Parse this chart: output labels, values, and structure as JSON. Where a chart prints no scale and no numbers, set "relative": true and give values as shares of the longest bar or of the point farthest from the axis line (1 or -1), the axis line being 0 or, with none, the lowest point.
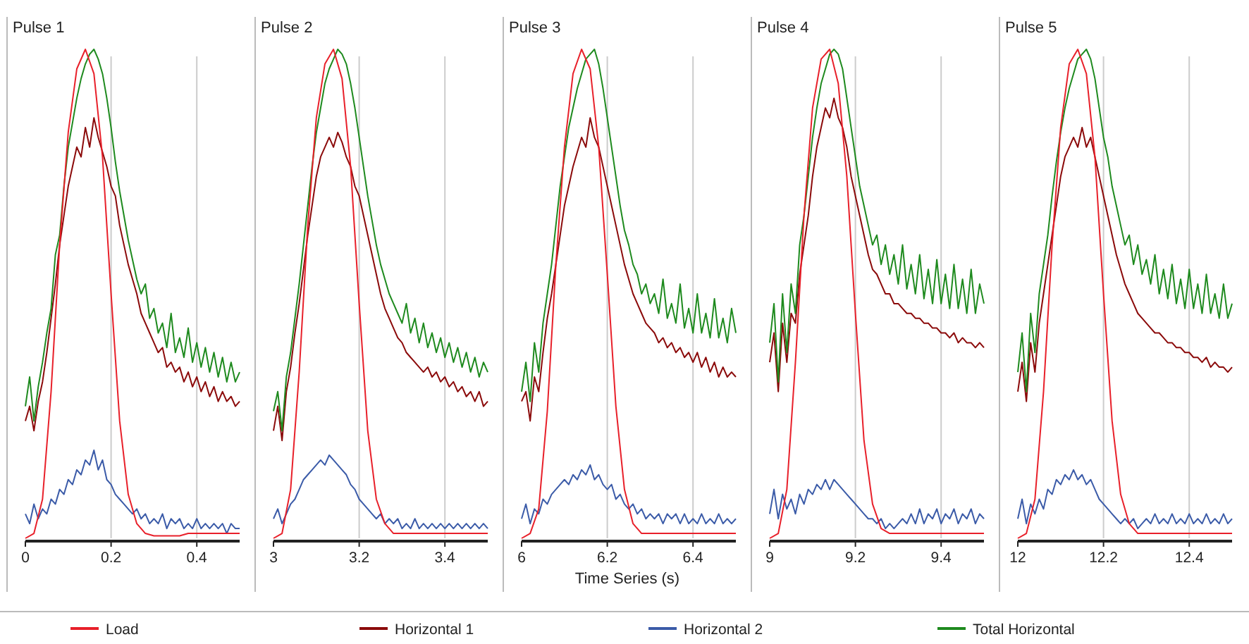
{
  "chart_data": [
    {
      "type": "line",
      "title": "Pulse 1",
      "relative": true,
      "grid": "x",
      "legend": "bottom",
      "xlim": [
        0,
        0.5
      ],
      "xticks": [
        0,
        0.2,
        0.4
      ],
      "x": [
        0,
        0.01,
        0.02,
        0.03,
        0.04,
        0.05,
        0.06,
        0.07,
        0.08,
        0.09,
        0.1,
        0.11,
        0.12,
        0.13,
        0.14,
        0.15,
        0.16,
        0.17,
        0.18,
        0.19,
        0.2,
        0.21,
        0.22,
        0.23,
        0.24,
        0.25,
        0.26,
        0.27,
        0.28,
        0.29,
        0.3,
        0.31,
        0.32,
        0.33,
        0.34,
        0.35,
        0.36,
        0.37,
        0.38,
        0.39,
        0.4,
        0.41,
        0.42,
        0.43,
        0.44,
        0.45,
        0.46,
        0.47,
        0.48,
        0.49,
        0.5
      ],
      "series": [
        {
          "name": "Load",
          "color": "#e8202a",
          "x": [
            0,
            0.02,
            0.04,
            0.06,
            0.08,
            0.1,
            0.12,
            0.14,
            0.16,
            0.18,
            0.2,
            0.22,
            0.24,
            0.26,
            0.28,
            0.3,
            0.32,
            0.34,
            0.36,
            0.38,
            0.4,
            0.42,
            0.44,
            0.46,
            0.48,
            0.5
          ],
          "values": [
            0,
            0.01,
            0.08,
            0.3,
            0.6,
            0.83,
            0.96,
            1.0,
            0.95,
            0.78,
            0.5,
            0.24,
            0.09,
            0.03,
            0.01,
            0.005,
            0.005,
            0.005,
            0.005,
            0.01,
            0.01,
            0.01,
            0.01,
            0.01,
            0.01,
            0.01
          ]
        },
        {
          "name": "Horizontal 1",
          "color": "#8b0a0a",
          "values": [
            0.24,
            0.27,
            0.22,
            0.28,
            0.32,
            0.38,
            0.45,
            0.52,
            0.6,
            0.66,
            0.72,
            0.76,
            0.8,
            0.78,
            0.84,
            0.8,
            0.86,
            0.82,
            0.79,
            0.76,
            0.72,
            0.7,
            0.64,
            0.6,
            0.56,
            0.53,
            0.5,
            0.46,
            0.44,
            0.42,
            0.4,
            0.38,
            0.39,
            0.35,
            0.36,
            0.34,
            0.35,
            0.32,
            0.34,
            0.31,
            0.33,
            0.3,
            0.32,
            0.29,
            0.31,
            0.28,
            0.3,
            0.28,
            0.29,
            0.27,
            0.28
          ]
        },
        {
          "name": "Horizontal 2",
          "color": "#3b5ba8",
          "values": [
            0.05,
            0.03,
            0.07,
            0.04,
            0.06,
            0.05,
            0.08,
            0.07,
            0.1,
            0.09,
            0.12,
            0.11,
            0.14,
            0.13,
            0.16,
            0.15,
            0.18,
            0.14,
            0.16,
            0.12,
            0.11,
            0.09,
            0.08,
            0.07,
            0.06,
            0.05,
            0.06,
            0.04,
            0.05,
            0.03,
            0.04,
            0.03,
            0.05,
            0.02,
            0.04,
            0.03,
            0.04,
            0.02,
            0.03,
            0.02,
            0.04,
            0.02,
            0.03,
            0.02,
            0.03,
            0.02,
            0.03,
            0.01,
            0.03,
            0.02,
            0.02
          ]
        },
        {
          "name": "Total Horizontal",
          "color": "#1e8a1e",
          "values": [
            0.27,
            0.33,
            0.24,
            0.31,
            0.36,
            0.42,
            0.47,
            0.58,
            0.62,
            0.72,
            0.8,
            0.85,
            0.9,
            0.94,
            0.97,
            0.99,
            1.0,
            0.98,
            0.95,
            0.9,
            0.84,
            0.77,
            0.71,
            0.66,
            0.61,
            0.57,
            0.53,
            0.5,
            0.52,
            0.45,
            0.47,
            0.42,
            0.44,
            0.39,
            0.46,
            0.38,
            0.41,
            0.37,
            0.43,
            0.36,
            0.4,
            0.35,
            0.39,
            0.34,
            0.38,
            0.33,
            0.37,
            0.32,
            0.36,
            0.32,
            0.34
          ]
        }
      ]
    },
    {
      "type": "line",
      "title": "Pulse 2",
      "relative": true,
      "grid": "x",
      "xlim": [
        3,
        3.5
      ],
      "xticks": [
        3,
        3.2,
        3.4
      ],
      "x": [
        3,
        3.01,
        3.02,
        3.03,
        3.04,
        3.05,
        3.06,
        3.07,
        3.08,
        3.09,
        3.1,
        3.11,
        3.12,
        3.13,
        3.14,
        3.15,
        3.16,
        3.17,
        3.18,
        3.19,
        3.2,
        3.21,
        3.22,
        3.23,
        3.24,
        3.25,
        3.26,
        3.27,
        3.28,
        3.29,
        3.3,
        3.31,
        3.32,
        3.33,
        3.34,
        3.35,
        3.36,
        3.37,
        3.38,
        3.39,
        3.4,
        3.41,
        3.42,
        3.43,
        3.44,
        3.45,
        3.46,
        3.47,
        3.48,
        3.49,
        3.5
      ],
      "series": [
        {
          "color": "#e8202a",
          "x": [
            3,
            3.02,
            3.04,
            3.06,
            3.08,
            3.1,
            3.12,
            3.14,
            3.16,
            3.18,
            3.2,
            3.22,
            3.24,
            3.26,
            3.28,
            3.3,
            3.32,
            3.34,
            3.36,
            3.38,
            3.4,
            3.42,
            3.44,
            3.46,
            3.48,
            3.5
          ],
          "values": [
            0,
            0.01,
            0.1,
            0.34,
            0.64,
            0.86,
            0.97,
            1.0,
            0.94,
            0.76,
            0.48,
            0.22,
            0.08,
            0.03,
            0.01,
            0.01,
            0.01,
            0.01,
            0.01,
            0.01,
            0.01,
            0.01,
            0.01,
            0.01,
            0.01,
            0.01
          ]
        },
        {
          "color": "#8b0a0a",
          "values": [
            0.22,
            0.27,
            0.2,
            0.3,
            0.35,
            0.42,
            0.48,
            0.55,
            0.62,
            0.68,
            0.74,
            0.78,
            0.8,
            0.82,
            0.8,
            0.83,
            0.81,
            0.78,
            0.76,
            0.72,
            0.7,
            0.66,
            0.62,
            0.58,
            0.54,
            0.5,
            0.47,
            0.45,
            0.43,
            0.41,
            0.4,
            0.38,
            0.37,
            0.36,
            0.35,
            0.34,
            0.35,
            0.33,
            0.34,
            0.32,
            0.33,
            0.31,
            0.32,
            0.3,
            0.31,
            0.29,
            0.3,
            0.28,
            0.3,
            0.27,
            0.28
          ]
        },
        {
          "color": "#3b5ba8",
          "values": [
            0.04,
            0.06,
            0.03,
            0.05,
            0.07,
            0.08,
            0.1,
            0.12,
            0.13,
            0.14,
            0.15,
            0.16,
            0.15,
            0.17,
            0.16,
            0.15,
            0.14,
            0.13,
            0.11,
            0.1,
            0.08,
            0.07,
            0.06,
            0.05,
            0.04,
            0.05,
            0.03,
            0.04,
            0.03,
            0.04,
            0.02,
            0.03,
            0.02,
            0.04,
            0.02,
            0.03,
            0.02,
            0.03,
            0.02,
            0.03,
            0.02,
            0.03,
            0.02,
            0.03,
            0.02,
            0.03,
            0.02,
            0.03,
            0.02,
            0.03,
            0.02
          ]
        },
        {
          "color": "#1e8a1e",
          "values": [
            0.26,
            0.3,
            0.22,
            0.33,
            0.38,
            0.45,
            0.52,
            0.6,
            0.68,
            0.76,
            0.83,
            0.88,
            0.93,
            0.96,
            0.98,
            1.0,
            0.99,
            0.97,
            0.93,
            0.88,
            0.82,
            0.76,
            0.7,
            0.65,
            0.6,
            0.56,
            0.53,
            0.5,
            0.48,
            0.46,
            0.44,
            0.48,
            0.42,
            0.45,
            0.4,
            0.44,
            0.39,
            0.42,
            0.38,
            0.41,
            0.37,
            0.4,
            0.36,
            0.39,
            0.35,
            0.38,
            0.34,
            0.37,
            0.33,
            0.36,
            0.34
          ]
        }
      ]
    },
    {
      "type": "line",
      "title": "Pulse 3",
      "xlabel": "Time Series (s)",
      "relative": true,
      "grid": "x",
      "xlim": [
        6,
        6.5
      ],
      "xticks": [
        6,
        6.2,
        6.4
      ],
      "x": [
        6,
        6.01,
        6.02,
        6.03,
        6.04,
        6.05,
        6.06,
        6.07,
        6.08,
        6.09,
        6.1,
        6.11,
        6.12,
        6.13,
        6.14,
        6.15,
        6.16,
        6.17,
        6.18,
        6.19,
        6.2,
        6.21,
        6.22,
        6.23,
        6.24,
        6.25,
        6.26,
        6.27,
        6.28,
        6.29,
        6.3,
        6.31,
        6.32,
        6.33,
        6.34,
        6.35,
        6.36,
        6.37,
        6.38,
        6.39,
        6.4,
        6.41,
        6.42,
        6.43,
        6.44,
        6.45,
        6.46,
        6.47,
        6.48,
        6.49,
        6.5
      ],
      "series": [
        {
          "color": "#e8202a",
          "x": [
            6,
            6.02,
            6.04,
            6.06,
            6.08,
            6.1,
            6.12,
            6.14,
            6.16,
            6.18,
            6.2,
            6.22,
            6.24,
            6.26,
            6.28,
            6.3,
            6.32,
            6.34,
            6.36,
            6.38,
            6.4,
            6.42,
            6.44,
            6.46,
            6.48,
            6.5
          ],
          "values": [
            0,
            0.01,
            0.06,
            0.26,
            0.56,
            0.8,
            0.95,
            1.0,
            0.96,
            0.8,
            0.54,
            0.27,
            0.1,
            0.03,
            0.01,
            0.01,
            0.01,
            0.01,
            0.01,
            0.01,
            0.01,
            0.01,
            0.01,
            0.01,
            0.01,
            0.01
          ]
        },
        {
          "color": "#8b0a0a",
          "values": [
            0.28,
            0.3,
            0.24,
            0.33,
            0.3,
            0.38,
            0.45,
            0.5,
            0.56,
            0.62,
            0.68,
            0.72,
            0.76,
            0.79,
            0.82,
            0.8,
            0.86,
            0.82,
            0.8,
            0.76,
            0.72,
            0.68,
            0.64,
            0.6,
            0.56,
            0.53,
            0.5,
            0.48,
            0.46,
            0.44,
            0.43,
            0.42,
            0.4,
            0.41,
            0.39,
            0.4,
            0.38,
            0.39,
            0.37,
            0.38,
            0.36,
            0.38,
            0.35,
            0.37,
            0.34,
            0.36,
            0.33,
            0.35,
            0.33,
            0.34,
            0.33
          ]
        },
        {
          "color": "#3b5ba8",
          "values": [
            0.04,
            0.07,
            0.03,
            0.06,
            0.05,
            0.08,
            0.07,
            0.09,
            0.1,
            0.11,
            0.12,
            0.11,
            0.13,
            0.12,
            0.14,
            0.13,
            0.15,
            0.12,
            0.13,
            0.11,
            0.1,
            0.11,
            0.08,
            0.09,
            0.07,
            0.06,
            0.07,
            0.05,
            0.06,
            0.04,
            0.05,
            0.04,
            0.05,
            0.03,
            0.05,
            0.04,
            0.05,
            0.03,
            0.05,
            0.03,
            0.04,
            0.03,
            0.05,
            0.03,
            0.04,
            0.03,
            0.05,
            0.03,
            0.04,
            0.03,
            0.04
          ]
        },
        {
          "color": "#1e8a1e",
          "values": [
            0.3,
            0.36,
            0.28,
            0.4,
            0.34,
            0.44,
            0.5,
            0.56,
            0.64,
            0.72,
            0.78,
            0.84,
            0.88,
            0.92,
            0.95,
            0.98,
            0.99,
            1.0,
            0.97,
            0.92,
            0.86,
            0.8,
            0.74,
            0.68,
            0.63,
            0.6,
            0.56,
            0.54,
            0.5,
            0.52,
            0.48,
            0.5,
            0.46,
            0.53,
            0.45,
            0.48,
            0.44,
            0.52,
            0.43,
            0.47,
            0.42,
            0.5,
            0.42,
            0.46,
            0.41,
            0.49,
            0.41,
            0.45,
            0.4,
            0.47,
            0.42
          ]
        }
      ]
    },
    {
      "type": "line",
      "title": "Pulse 4",
      "relative": true,
      "grid": "x",
      "xlim": [
        9,
        9.5
      ],
      "xticks": [
        9,
        9.2,
        9.4
      ],
      "x": [
        9,
        9.01,
        9.02,
        9.03,
        9.04,
        9.05,
        9.06,
        9.07,
        9.08,
        9.09,
        9.1,
        9.11,
        9.12,
        9.13,
        9.14,
        9.15,
        9.16,
        9.17,
        9.18,
        9.19,
        9.2,
        9.21,
        9.22,
        9.23,
        9.24,
        9.25,
        9.26,
        9.27,
        9.28,
        9.29,
        9.3,
        9.31,
        9.32,
        9.33,
        9.34,
        9.35,
        9.36,
        9.37,
        9.38,
        9.39,
        9.4,
        9.41,
        9.42,
        9.43,
        9.44,
        9.45,
        9.46,
        9.47,
        9.48,
        9.49,
        9.5
      ],
      "series": [
        {
          "color": "#e8202a",
          "x": [
            9,
            9.02,
            9.04,
            9.06,
            9.08,
            9.1,
            9.12,
            9.14,
            9.16,
            9.18,
            9.2,
            9.22,
            9.24,
            9.26,
            9.28,
            9.3,
            9.32,
            9.34,
            9.36,
            9.38,
            9.4,
            9.42,
            9.44,
            9.46,
            9.48,
            9.5
          ],
          "values": [
            0,
            0.01,
            0.1,
            0.36,
            0.66,
            0.88,
            0.98,
            1.0,
            0.93,
            0.74,
            0.46,
            0.2,
            0.07,
            0.02,
            0.01,
            0.01,
            0.01,
            0.01,
            0.01,
            0.01,
            0.01,
            0.01,
            0.01,
            0.01,
            0.01,
            0.01
          ]
        },
        {
          "color": "#8b0a0a",
          "values": [
            0.36,
            0.42,
            0.3,
            0.44,
            0.36,
            0.46,
            0.44,
            0.54,
            0.6,
            0.66,
            0.74,
            0.8,
            0.84,
            0.88,
            0.86,
            0.9,
            0.86,
            0.84,
            0.8,
            0.74,
            0.7,
            0.66,
            0.62,
            0.58,
            0.55,
            0.54,
            0.52,
            0.5,
            0.5,
            0.48,
            0.48,
            0.47,
            0.46,
            0.46,
            0.45,
            0.45,
            0.44,
            0.44,
            0.43,
            0.43,
            0.42,
            0.42,
            0.41,
            0.42,
            0.4,
            0.41,
            0.4,
            0.4,
            0.39,
            0.4,
            0.39
          ]
        },
        {
          "color": "#3b5ba8",
          "values": [
            0.05,
            0.1,
            0.04,
            0.09,
            0.06,
            0.08,
            0.05,
            0.09,
            0.07,
            0.1,
            0.09,
            0.11,
            0.1,
            0.12,
            0.1,
            0.12,
            0.11,
            0.1,
            0.09,
            0.08,
            0.07,
            0.06,
            0.05,
            0.04,
            0.04,
            0.03,
            0.04,
            0.02,
            0.03,
            0.02,
            0.03,
            0.04,
            0.03,
            0.05,
            0.03,
            0.06,
            0.03,
            0.05,
            0.04,
            0.06,
            0.03,
            0.05,
            0.04,
            0.06,
            0.03,
            0.05,
            0.04,
            0.06,
            0.03,
            0.05,
            0.04
          ]
        },
        {
          "color": "#1e8a1e",
          "values": [
            0.4,
            0.48,
            0.32,
            0.5,
            0.38,
            0.52,
            0.46,
            0.6,
            0.66,
            0.74,
            0.82,
            0.88,
            0.93,
            0.96,
            0.99,
            1.0,
            0.99,
            0.96,
            0.9,
            0.84,
            0.78,
            0.72,
            0.68,
            0.64,
            0.6,
            0.62,
            0.56,
            0.6,
            0.54,
            0.58,
            0.52,
            0.6,
            0.51,
            0.56,
            0.5,
            0.58,
            0.49,
            0.55,
            0.48,
            0.57,
            0.48,
            0.54,
            0.47,
            0.56,
            0.47,
            0.53,
            0.46,
            0.55,
            0.46,
            0.52,
            0.48
          ]
        }
      ]
    },
    {
      "type": "line",
      "title": "Pulse 5",
      "relative": true,
      "grid": "x",
      "xlim": [
        12,
        12.5
      ],
      "xticks": [
        12,
        12.2,
        12.4
      ],
      "x": [
        12,
        12.01,
        12.02,
        12.03,
        12.04,
        12.05,
        12.06,
        12.07,
        12.08,
        12.09,
        12.1,
        12.11,
        12.12,
        12.13,
        12.14,
        12.15,
        12.16,
        12.17,
        12.18,
        12.19,
        12.2,
        12.21,
        12.22,
        12.23,
        12.24,
        12.25,
        12.26,
        12.27,
        12.28,
        12.29,
        12.3,
        12.31,
        12.32,
        12.33,
        12.34,
        12.35,
        12.36,
        12.37,
        12.38,
        12.39,
        12.4,
        12.41,
        12.42,
        12.43,
        12.44,
        12.45,
        12.46,
        12.47,
        12.48,
        12.49,
        12.5
      ],
      "series": [
        {
          "color": "#e8202a",
          "x": [
            12,
            12.02,
            12.04,
            12.06,
            12.08,
            12.1,
            12.12,
            12.14,
            12.16,
            12.18,
            12.2,
            12.22,
            12.24,
            12.26,
            12.28,
            12.3,
            12.32,
            12.34,
            12.36,
            12.38,
            12.4,
            12.42,
            12.44,
            12.46,
            12.48,
            12.5
          ],
          "values": [
            0,
            0.01,
            0.08,
            0.3,
            0.6,
            0.84,
            0.97,
            1.0,
            0.95,
            0.78,
            0.5,
            0.24,
            0.09,
            0.03,
            0.01,
            0.01,
            0.01,
            0.01,
            0.01,
            0.01,
            0.01,
            0.01,
            0.01,
            0.01,
            0.01,
            0.01
          ]
        },
        {
          "color": "#8b0a0a",
          "values": [
            0.3,
            0.36,
            0.28,
            0.4,
            0.34,
            0.44,
            0.5,
            0.56,
            0.62,
            0.68,
            0.74,
            0.78,
            0.8,
            0.82,
            0.8,
            0.84,
            0.8,
            0.82,
            0.78,
            0.74,
            0.7,
            0.66,
            0.62,
            0.58,
            0.55,
            0.52,
            0.5,
            0.48,
            0.46,
            0.45,
            0.44,
            0.43,
            0.42,
            0.42,
            0.41,
            0.4,
            0.4,
            0.39,
            0.39,
            0.38,
            0.38,
            0.37,
            0.37,
            0.36,
            0.37,
            0.35,
            0.36,
            0.35,
            0.35,
            0.34,
            0.35
          ]
        },
        {
          "color": "#3b5ba8",
          "values": [
            0.04,
            0.08,
            0.03,
            0.07,
            0.05,
            0.08,
            0.06,
            0.1,
            0.09,
            0.12,
            0.11,
            0.13,
            0.12,
            0.14,
            0.12,
            0.13,
            0.11,
            0.12,
            0.1,
            0.08,
            0.07,
            0.06,
            0.05,
            0.04,
            0.03,
            0.04,
            0.03,
            0.04,
            0.02,
            0.03,
            0.04,
            0.03,
            0.05,
            0.03,
            0.04,
            0.03,
            0.05,
            0.03,
            0.04,
            0.03,
            0.05,
            0.03,
            0.04,
            0.03,
            0.05,
            0.03,
            0.04,
            0.03,
            0.05,
            0.03,
            0.04
          ]
        },
        {
          "color": "#1e8a1e",
          "values": [
            0.34,
            0.42,
            0.3,
            0.46,
            0.38,
            0.5,
            0.56,
            0.62,
            0.7,
            0.77,
            0.83,
            0.88,
            0.92,
            0.95,
            0.98,
            0.99,
            1.0,
            0.98,
            0.94,
            0.88,
            0.82,
            0.78,
            0.72,
            0.68,
            0.64,
            0.6,
            0.62,
            0.56,
            0.6,
            0.54,
            0.57,
            0.52,
            0.58,
            0.5,
            0.55,
            0.49,
            0.56,
            0.48,
            0.53,
            0.47,
            0.55,
            0.47,
            0.52,
            0.46,
            0.54,
            0.46,
            0.5,
            0.45,
            0.52,
            0.45,
            0.48
          ]
        }
      ]
    }
  ]
}
